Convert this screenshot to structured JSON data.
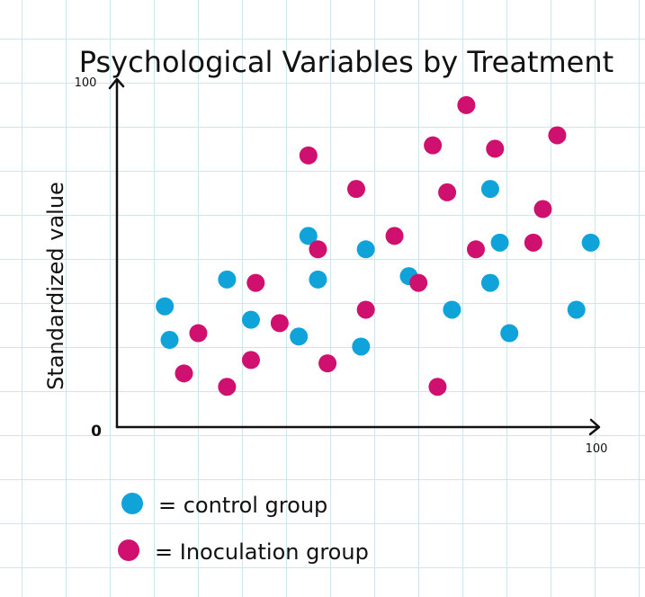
{
  "colors": {
    "control": "#0fa3d9",
    "inoculation": "#d0106e",
    "axis": "#111111"
  },
  "chart_data": {
    "type": "scatter",
    "title": "Psychological Variables by Treatment",
    "xlabel": "",
    "ylabel": "Standardized value",
    "xlim": [
      0,
      100
    ],
    "ylim": [
      0,
      100
    ],
    "x_ticks": [
      "0",
      "100"
    ],
    "y_ticks": [
      "100"
    ],
    "grid": false,
    "legend_position": "bottom-left",
    "series": [
      {
        "name": "= control group",
        "color": "#0fa3d9",
        "points": [
          {
            "x": 10,
            "y": 36
          },
          {
            "x": 11,
            "y": 26
          },
          {
            "x": 23,
            "y": 44
          },
          {
            "x": 28,
            "y": 32
          },
          {
            "x": 38,
            "y": 27
          },
          {
            "x": 40,
            "y": 57
          },
          {
            "x": 42,
            "y": 44
          },
          {
            "x": 51,
            "y": 24
          },
          {
            "x": 52,
            "y": 53
          },
          {
            "x": 61,
            "y": 45
          },
          {
            "x": 70,
            "y": 35
          },
          {
            "x": 78,
            "y": 71
          },
          {
            "x": 78,
            "y": 43
          },
          {
            "x": 80,
            "y": 55
          },
          {
            "x": 82,
            "y": 28
          },
          {
            "x": 96,
            "y": 35
          },
          {
            "x": 99,
            "y": 55
          }
        ]
      },
      {
        "name": "= Inoculation group",
        "color": "#d0106e",
        "points": [
          {
            "x": 14,
            "y": 16
          },
          {
            "x": 17,
            "y": 28
          },
          {
            "x": 23,
            "y": 12
          },
          {
            "x": 28,
            "y": 20
          },
          {
            "x": 29,
            "y": 43
          },
          {
            "x": 34,
            "y": 31
          },
          {
            "x": 40,
            "y": 81
          },
          {
            "x": 42,
            "y": 53
          },
          {
            "x": 44,
            "y": 19
          },
          {
            "x": 50,
            "y": 71
          },
          {
            "x": 52,
            "y": 35
          },
          {
            "x": 58,
            "y": 57
          },
          {
            "x": 63,
            "y": 43
          },
          {
            "x": 66,
            "y": 84
          },
          {
            "x": 67,
            "y": 12
          },
          {
            "x": 69,
            "y": 70
          },
          {
            "x": 73,
            "y": 96
          },
          {
            "x": 75,
            "y": 53
          },
          {
            "x": 79,
            "y": 83
          },
          {
            "x": 87,
            "y": 55
          },
          {
            "x": 89,
            "y": 65
          },
          {
            "x": 92,
            "y": 87
          }
        ]
      }
    ]
  }
}
